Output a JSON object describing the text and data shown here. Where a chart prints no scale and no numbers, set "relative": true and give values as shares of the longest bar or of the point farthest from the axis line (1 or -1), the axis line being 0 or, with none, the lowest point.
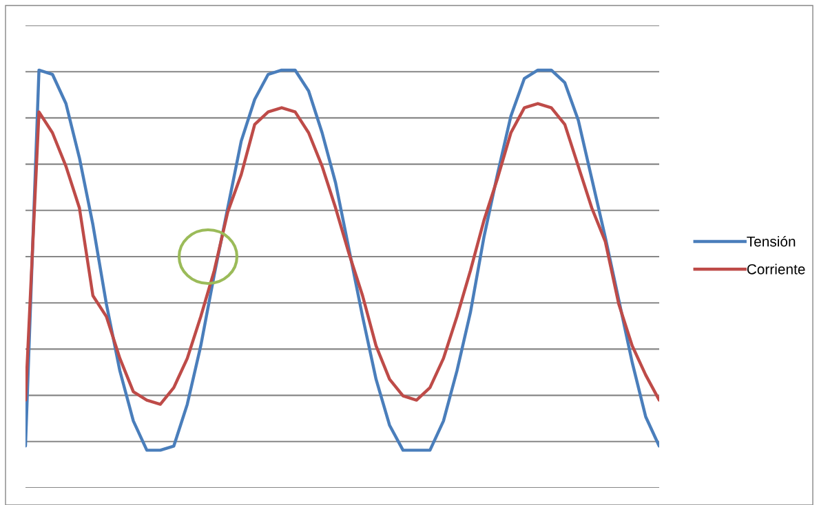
{
  "chart_data": {
    "type": "line",
    "relative": true,
    "grid": "y",
    "legend": "right",
    "marker": "none",
    "line_style": "solid",
    "categories": [
      null,
      null,
      null,
      null,
      null,
      null,
      null,
      null,
      null,
      null,
      null,
      null,
      null,
      null,
      null,
      null,
      null,
      null,
      null,
      null,
      null,
      null,
      null,
      null,
      null,
      null,
      null,
      null,
      null,
      null,
      null,
      null,
      null,
      null,
      null,
      null,
      null,
      null,
      null,
      null,
      null,
      null,
      null,
      null,
      null,
      null,
      null,
      null
    ],
    "series": [
      {
        "name": "Tensión",
        "color": "#4a7ebb",
        "values": [
          0.1,
          1.0,
          0.99,
          0.92,
          0.79,
          0.63,
          0.44,
          0.28,
          0.16,
          0.09,
          0.09,
          0.1,
          0.2,
          0.34,
          0.51,
          0.67,
          0.83,
          0.93,
          0.99,
          1.0,
          1.0,
          0.95,
          0.85,
          0.73,
          0.57,
          0.41,
          0.26,
          0.15,
          0.09,
          0.09,
          0.09,
          0.16,
          0.28,
          0.42,
          0.6,
          0.75,
          0.89,
          0.98,
          1.0,
          1.0,
          0.97,
          0.88,
          0.74,
          0.6,
          0.45,
          0.3,
          0.17,
          0.1
        ]
      },
      {
        "name": "Corriente",
        "color": "#be4b48",
        "values": [
          0.21,
          0.9,
          0.85,
          0.77,
          0.67,
          0.46,
          0.41,
          0.31,
          0.23,
          0.21,
          0.2,
          0.24,
          0.31,
          0.41,
          0.52,
          0.66,
          0.75,
          0.87,
          0.9,
          0.91,
          0.9,
          0.85,
          0.77,
          0.67,
          0.56,
          0.46,
          0.34,
          0.26,
          0.22,
          0.21,
          0.24,
          0.31,
          0.41,
          0.52,
          0.64,
          0.74,
          0.85,
          0.91,
          0.92,
          0.91,
          0.87,
          0.77,
          0.67,
          0.59,
          0.44,
          0.34,
          0.27,
          0.21
        ]
      }
    ]
  }
}
